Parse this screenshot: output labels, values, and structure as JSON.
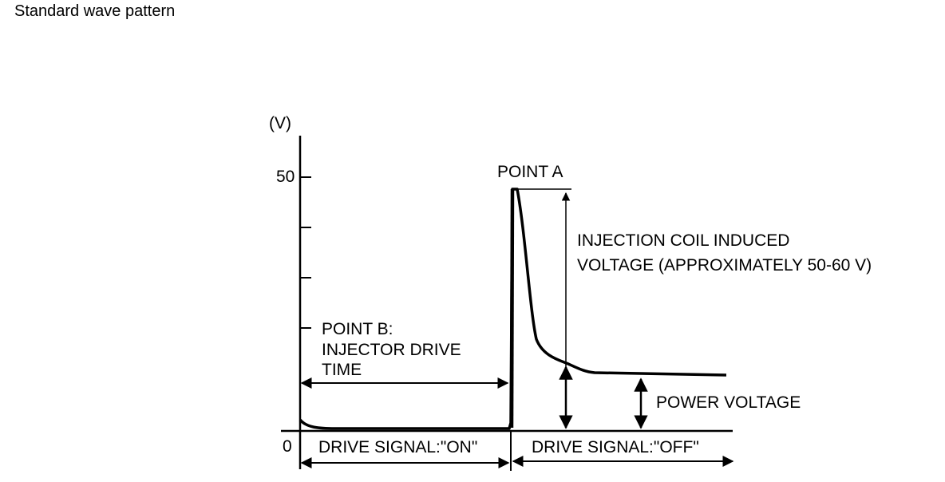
{
  "page": {
    "title": "Standard wave pattern"
  },
  "diagram": {
    "y_unit": "(V)",
    "tick_50": "50",
    "tick_0": "0",
    "point_a": "POINT A",
    "coil_voltage_line1": "INJECTION COIL INDUCED",
    "coil_voltage_line2": "VOLTAGE (APPROXIMATELY 50-60 V)",
    "point_b_line1": "POINT B:",
    "point_b_line2": "INJECTOR DRIVE",
    "point_b_line3": "TIME",
    "power_voltage": "POWER VOLTAGE",
    "drive_on": "DRIVE SIGNAL:\"ON\"",
    "drive_off": "DRIVE SIGNAL:\"OFF\""
  }
}
